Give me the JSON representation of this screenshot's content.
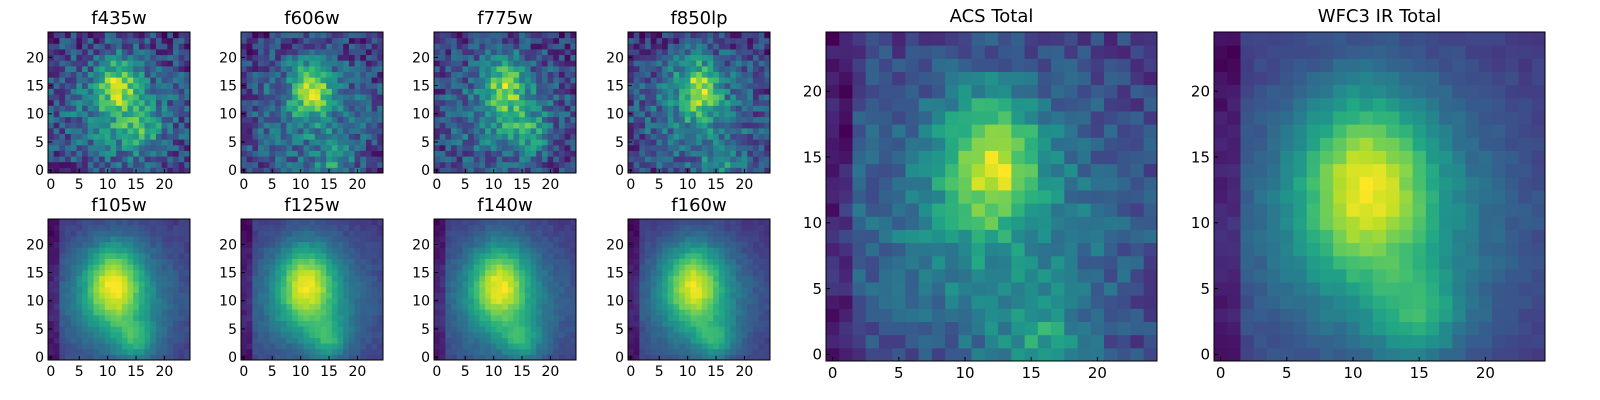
{
  "colors": {
    "colormap": "viridis",
    "background": "#ffffff",
    "axis_frame": "#000000"
  },
  "chart_data": [
    {
      "type": "heatmap",
      "title": "f435w",
      "xlim": [
        -0.5,
        24.5
      ],
      "ylim": [
        -0.5,
        24.5
      ],
      "xticks": [
        "0",
        "5",
        "10",
        "15",
        "20"
      ],
      "yticks": [
        "0",
        "5",
        "10",
        "15",
        "20"
      ],
      "grid": false,
      "legend": "none",
      "colormap": "viridis",
      "grid_size": [
        25,
        25
      ],
      "morphology": "noisy",
      "peak": [
        12,
        15
      ],
      "secondary_peak": [
        16,
        7
      ]
    },
    {
      "type": "heatmap",
      "title": "f606w",
      "xlim": [
        -0.5,
        24.5
      ],
      "ylim": [
        -0.5,
        24.5
      ],
      "xticks": [
        "0",
        "5",
        "10",
        "15",
        "20"
      ],
      "yticks": [
        "0",
        "5",
        "10",
        "15",
        "20"
      ],
      "grid": false,
      "legend": "none",
      "colormap": "viridis",
      "grid_size": [
        25,
        25
      ],
      "morphology": "noisy",
      "peak": [
        12,
        15
      ],
      "secondary_peak": [
        16,
        1
      ]
    },
    {
      "type": "heatmap",
      "title": "f775w",
      "xlim": [
        -0.5,
        24.5
      ],
      "ylim": [
        -0.5,
        24.5
      ],
      "xticks": [
        "0",
        "5",
        "10",
        "15",
        "20"
      ],
      "yticks": [
        "0",
        "5",
        "10",
        "15",
        "20"
      ],
      "grid": false,
      "legend": "none",
      "colormap": "viridis",
      "grid_size": [
        25,
        25
      ],
      "morphology": "noisy",
      "peak": [
        12,
        15
      ],
      "secondary_peak": [
        16,
        7
      ]
    },
    {
      "type": "heatmap",
      "title": "f850lp",
      "xlim": [
        -0.5,
        24.5
      ],
      "ylim": [
        -0.5,
        24.5
      ],
      "xticks": [
        "0",
        "5",
        "10",
        "15",
        "20"
      ],
      "yticks": [
        "0",
        "5",
        "10",
        "15",
        "20"
      ],
      "grid": false,
      "legend": "none",
      "colormap": "viridis",
      "grid_size": [
        25,
        25
      ],
      "morphology": "noisy",
      "peak": [
        12,
        15
      ],
      "secondary_peak": [
        16,
        1
      ]
    },
    {
      "type": "heatmap",
      "title": "f105w",
      "xlim": [
        -0.5,
        24.5
      ],
      "ylim": [
        -0.5,
        24.5
      ],
      "xticks": [
        "0",
        "5",
        "10",
        "15",
        "20"
      ],
      "yticks": [
        "0",
        "5",
        "10",
        "15",
        "20"
      ],
      "grid": false,
      "legend": "none",
      "colormap": "viridis",
      "grid_size": [
        25,
        25
      ],
      "morphology": "smooth",
      "peak": [
        11,
        13
      ],
      "secondary_peak": [
        15,
        3
      ]
    },
    {
      "type": "heatmap",
      "title": "f125w",
      "xlim": [
        -0.5,
        24.5
      ],
      "ylim": [
        -0.5,
        24.5
      ],
      "xticks": [
        "0",
        "5",
        "10",
        "15",
        "20"
      ],
      "yticks": [
        "0",
        "5",
        "10",
        "15",
        "20"
      ],
      "grid": false,
      "legend": "none",
      "colormap": "viridis",
      "grid_size": [
        25,
        25
      ],
      "morphology": "smooth",
      "peak": [
        11,
        13
      ],
      "secondary_peak": [
        15,
        3
      ]
    },
    {
      "type": "heatmap",
      "title": "f140w",
      "xlim": [
        -0.5,
        24.5
      ],
      "ylim": [
        -0.5,
        24.5
      ],
      "xticks": [
        "0",
        "5",
        "10",
        "15",
        "20"
      ],
      "yticks": [
        "0",
        "5",
        "10",
        "15",
        "20"
      ],
      "grid": false,
      "legend": "none",
      "colormap": "viridis",
      "grid_size": [
        25,
        25
      ],
      "morphology": "smooth",
      "peak": [
        11,
        13
      ],
      "secondary_peak": [
        15,
        3
      ]
    },
    {
      "type": "heatmap",
      "title": "f160w",
      "xlim": [
        -0.5,
        24.5
      ],
      "ylim": [
        -0.5,
        24.5
      ],
      "xticks": [
        "0",
        "5",
        "10",
        "15",
        "20"
      ],
      "yticks": [
        "0",
        "5",
        "10",
        "15",
        "20"
      ],
      "grid": false,
      "legend": "none",
      "colormap": "viridis",
      "grid_size": [
        25,
        25
      ],
      "morphology": "smooth",
      "peak": [
        11,
        13
      ],
      "secondary_peak": [
        15,
        3
      ]
    },
    {
      "type": "heatmap",
      "title": "ACS Total",
      "xlim": [
        -0.5,
        24.5
      ],
      "ylim": [
        -0.5,
        24.5
      ],
      "xticks": [
        "0",
        "5",
        "10",
        "15",
        "20"
      ],
      "yticks": [
        "0",
        "5",
        "10",
        "15",
        "20"
      ],
      "grid": false,
      "legend": "none",
      "colormap": "viridis",
      "grid_size": [
        25,
        25
      ],
      "morphology": "medium",
      "peak": [
        12,
        15
      ],
      "secondary_peak": [
        16,
        1
      ]
    },
    {
      "type": "heatmap",
      "title": "WFC3 IR Total",
      "xlim": [
        -0.5,
        24.5
      ],
      "ylim": [
        -0.5,
        24.5
      ],
      "xticks": [
        "0",
        "5",
        "10",
        "15",
        "20"
      ],
      "yticks": [
        "0",
        "5",
        "10",
        "15",
        "20"
      ],
      "grid": false,
      "legend": "none",
      "colormap": "viridis",
      "grid_size": [
        25,
        25
      ],
      "morphology": "smooth",
      "peak": [
        11,
        13
      ],
      "secondary_peak": [
        15,
        3
      ]
    }
  ]
}
